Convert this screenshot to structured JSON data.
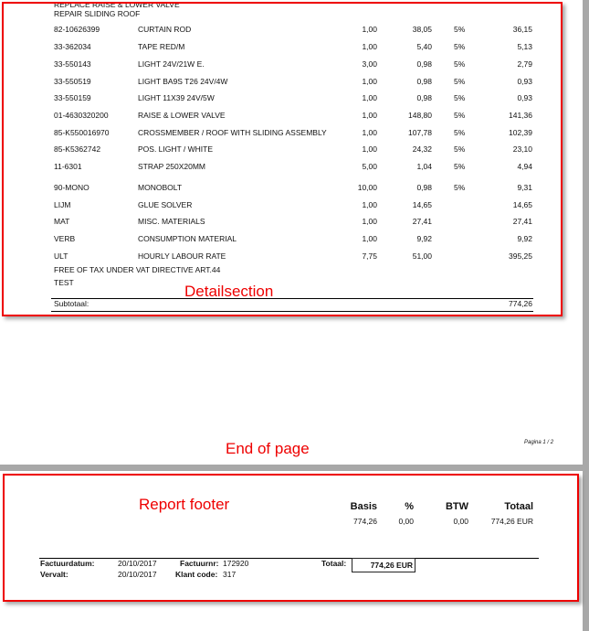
{
  "header_lines": [
    "REPLACE RAISE & LOWER VALVE",
    "REPAIR SLIDING ROOF"
  ],
  "rows": [
    {
      "code": "82-10626399",
      "desc": "CURTAIN ROD",
      "qty": "1,00",
      "price": "38,05",
      "vat": "5%",
      "total": "36,15"
    },
    {
      "code": "33-362034",
      "desc": "TAPE RED/M",
      "qty": "1,00",
      "price": "5,40",
      "vat": "5%",
      "total": "5,13"
    },
    {
      "code": "33-550143",
      "desc": "LIGHT 24V/21W E.",
      "qty": "3,00",
      "price": "0,98",
      "vat": "5%",
      "total": "2,79"
    },
    {
      "code": "33-550519",
      "desc": "LIGHT  BA9S T26  24V/4W",
      "qty": "1,00",
      "price": "0,98",
      "vat": "5%",
      "total": "0,93"
    },
    {
      "code": "33-550159",
      "desc": "LIGHT 11X39 24V/5W",
      "qty": "1,00",
      "price": "0,98",
      "vat": "5%",
      "total": "0,93"
    },
    {
      "code": "01-4630320200",
      "desc": "RAISE & LOWER VALVE",
      "qty": "1,00",
      "price": "148,80",
      "vat": "5%",
      "total": "141,36"
    },
    {
      "code": "85-K550016970",
      "desc": "CROSSMEMBER / ROOF WITH  SLIDING ASSEMBLY",
      "qty": "1,00",
      "price": "107,78",
      "vat": "5%",
      "total": "102,39"
    },
    {
      "code": "85-K5362742",
      "desc": "POS. LIGHT / WHITE",
      "qty": "1,00",
      "price": "24,32",
      "vat": "5%",
      "total": "23,10"
    },
    {
      "code": "11-6301",
      "desc": "STRAP 250X20MM",
      "qty": "5,00",
      "price": "1,04",
      "vat": "5%",
      "total": "4,94"
    },
    {
      "code": "90-MONO",
      "desc": "MONOBOLT",
      "qty": "10,00",
      "price": "0,98",
      "vat": "5%",
      "total": "9,31"
    },
    {
      "code": "LIJM",
      "desc": "GLUE SOLVER",
      "qty": "1,00",
      "price": "14,65",
      "vat": "",
      "total": "14,65"
    },
    {
      "code": "MAT",
      "desc": "MISC. MATERIALS",
      "qty": "1,00",
      "price": "27,41",
      "vat": "",
      "total": "27,41"
    },
    {
      "code": "VERB",
      "desc": "CONSUMPTION MATERIAL",
      "qty": "1,00",
      "price": "9,92",
      "vat": "",
      "total": "9,92"
    },
    {
      "code": "ULT",
      "desc": "HOURLY LABOUR RATE",
      "qty": "7,75",
      "price": "51,00",
      "vat": "",
      "total": "395,25"
    }
  ],
  "notes": [
    "FREE OF TAX UNDER VAT DIRECTIVE ART.44",
    "TEST"
  ],
  "subtotal": {
    "label": "Subtotaal:",
    "value": "774,26"
  },
  "annotations": {
    "detail": "Detailsection",
    "end_of_page": "End of page",
    "report_footer": "Report footer"
  },
  "page_number": "Pagina 1 / 2",
  "vat_summary": {
    "headers": [
      "Basis",
      "%",
      "BTW",
      "Totaal"
    ],
    "values": [
      "774,26",
      "0,00",
      "0,00",
      "774,26 EUR"
    ]
  },
  "footer": {
    "invoice_date_label": "Factuurdatum:",
    "invoice_date": "20/10/2017",
    "due_label": "Vervalt:",
    "due_date": "20/10/2017",
    "invoice_nr_label": "Factuurnr:",
    "invoice_nr": "172920",
    "customer_code_label": "Klant code:",
    "customer_code": "317",
    "total_label": "Totaal:",
    "total": "774,26 EUR"
  },
  "colors": {
    "annotation": "#ee0000",
    "page_gap": "#a8a8a8"
  }
}
